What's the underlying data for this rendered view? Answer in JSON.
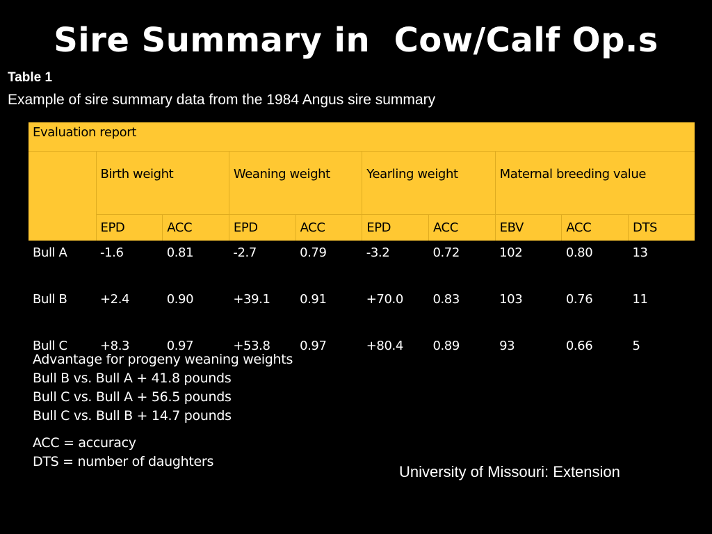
{
  "title": "Sire Summary in  Cow/Calf Op.s",
  "caption": {
    "label": "Table 1",
    "text": "Example of sire summary data from the 1984 Angus sire summary"
  },
  "table": {
    "report_header": "Evaluation report",
    "groups": [
      "Birth weight",
      "Weaning weight",
      "Yearling weight",
      "Maternal breeding value"
    ],
    "subheaders": [
      "EPD",
      "ACC",
      "EPD",
      "ACC",
      "EPD",
      "ACC",
      "EBV",
      "ACC",
      "DTS"
    ],
    "rows": [
      {
        "name": "Bull A",
        "values": [
          "-1.6",
          "0.81",
          "-2.7",
          "0.79",
          "-3.2",
          "0.72",
          "102",
          "0.80",
          "13"
        ]
      },
      {
        "name": "Bull B",
        "values": [
          "+2.4",
          "0.90",
          "+39.1",
          "0.91",
          "+70.0",
          "0.83",
          "103",
          "0.76",
          "11"
        ]
      },
      {
        "name": "Bull C",
        "values": [
          "+8.3",
          "0.97",
          "+53.8",
          "0.97",
          "+80.4",
          "0.89",
          "93",
          "0.66",
          "5"
        ]
      }
    ]
  },
  "advantage": {
    "heading": "Advantage for progeny weaning weights",
    "lines": [
      "Bull B vs. Bull A + 41.8 pounds",
      "Bull C vs. Bull A + 56.5 pounds",
      "Bull C vs. Bull B + 14.7 pounds"
    ]
  },
  "abbreviations": [
    "ACC = accuracy",
    "DTS = number of daughters"
  ],
  "source": "University of Missouri: Extension",
  "colors": {
    "background": "#000000",
    "header_fill": "#ffc832",
    "text": "#ffffff"
  }
}
